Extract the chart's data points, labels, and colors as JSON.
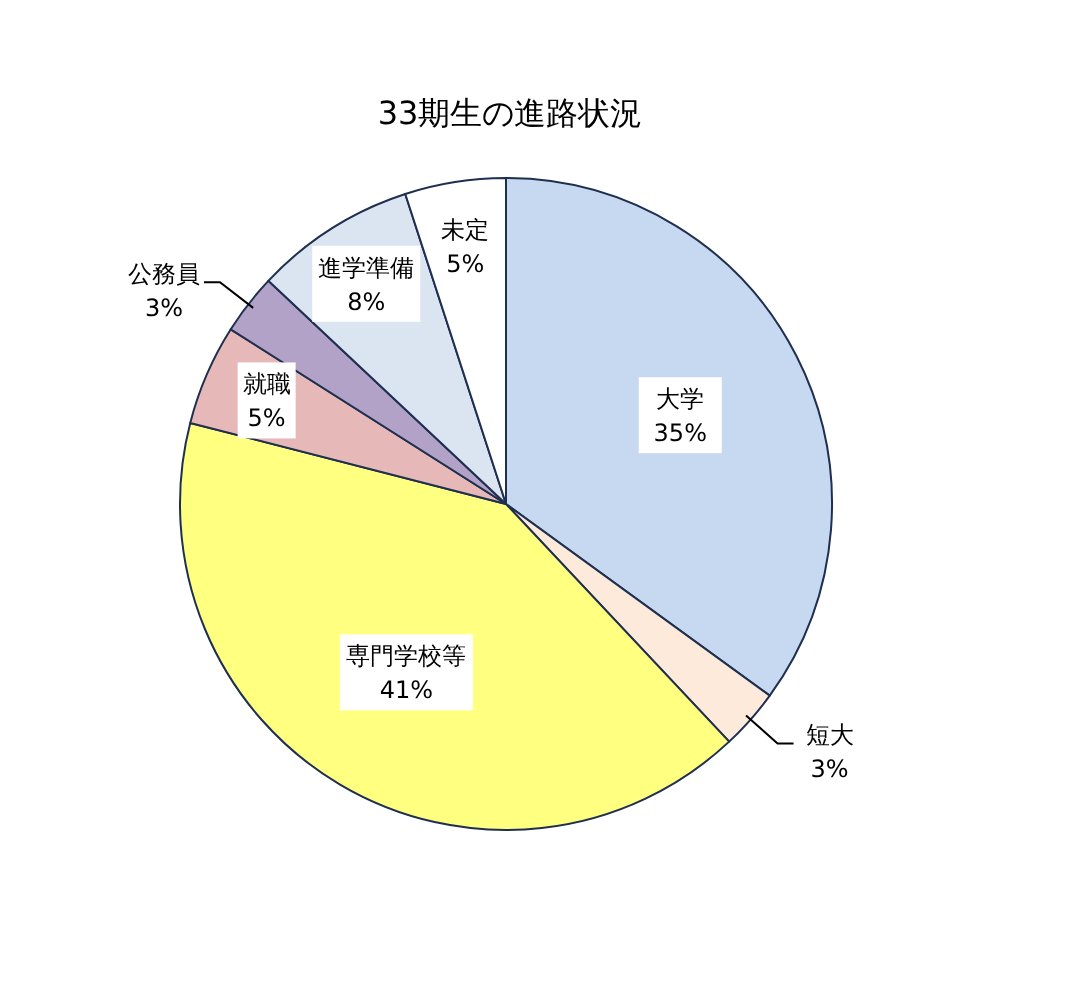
{
  "chart_data": {
    "type": "pie",
    "title": "33期生の進路状況",
    "categories": [
      "大学",
      "短大",
      "専門学校等",
      "就職",
      "公務員",
      "進学準備",
      "未定"
    ],
    "values": [
      35,
      3,
      41,
      5,
      3,
      8,
      5
    ],
    "value_labels": [
      "35%",
      "3%",
      "41%",
      "5%",
      "3%",
      "8%",
      "5%"
    ],
    "colors": [
      "#c6d9f1",
      "#fdeada",
      "#ffff80",
      "#e6b9b8",
      "#b3a2c7",
      "#dbe5f1",
      "#ffffff"
    ]
  }
}
